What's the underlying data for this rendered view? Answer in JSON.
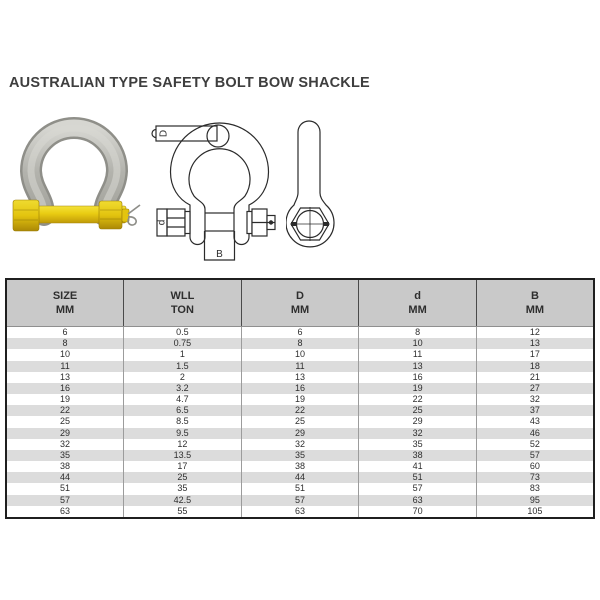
{
  "title": "AUSTRALIAN TYPE SAFETY BOLT BOW SHACKLE",
  "figures": {
    "photo": {
      "description": "Galvanised bow shackle with yellow safety bolt pin, hex nut and split cotter pin"
    },
    "front_view": {
      "dim_bow": "D",
      "dim_pin": "d",
      "dim_width": "B"
    },
    "side_view": {
      "description": "Side profile of shackle eye with hex nut, pin cross-hair and cotter pin ends"
    }
  },
  "table": {
    "headers": [
      [
        "SIZE",
        "MM"
      ],
      [
        "WLL",
        "TON"
      ],
      [
        "D",
        "MM"
      ],
      [
        "d",
        "MM"
      ],
      [
        "B",
        "MM"
      ]
    ],
    "rows": [
      [
        "6",
        "0.5",
        "6",
        "8",
        "12"
      ],
      [
        "8",
        "0.75",
        "8",
        "10",
        "13"
      ],
      [
        "10",
        "1",
        "10",
        "11",
        "17"
      ],
      [
        "11",
        "1.5",
        "11",
        "13",
        "18"
      ],
      [
        "13",
        "2",
        "13",
        "16",
        "21"
      ],
      [
        "16",
        "3.2",
        "16",
        "19",
        "27"
      ],
      [
        "19",
        "4.7",
        "19",
        "22",
        "32"
      ],
      [
        "22",
        "6.5",
        "22",
        "25",
        "37"
      ],
      [
        "25",
        "8.5",
        "25",
        "29",
        "43"
      ],
      [
        "29",
        "9.5",
        "29",
        "32",
        "46"
      ],
      [
        "32",
        "12",
        "32",
        "35",
        "52"
      ],
      [
        "35",
        "13.5",
        "35",
        "38",
        "57"
      ],
      [
        "38",
        "17",
        "38",
        "41",
        "60"
      ],
      [
        "44",
        "25",
        "44",
        "51",
        "73"
      ],
      [
        "51",
        "35",
        "51",
        "57",
        "83"
      ],
      [
        "57",
        "42.5",
        "57",
        "63",
        "95"
      ],
      [
        "63",
        "55",
        "63",
        "70",
        "105"
      ]
    ]
  },
  "colors": {
    "title_text": "#3e3e3e",
    "table_header_bg": "#c9c9c9",
    "table_row_alt_bg": "#dcdcdc",
    "table_row_bg": "#ffffff",
    "table_border": "#1f1f1f",
    "pin_yellow": "#e8cb12",
    "shackle_grey": "#b9b9b4",
    "drawing_line": "#2b2b2b"
  }
}
